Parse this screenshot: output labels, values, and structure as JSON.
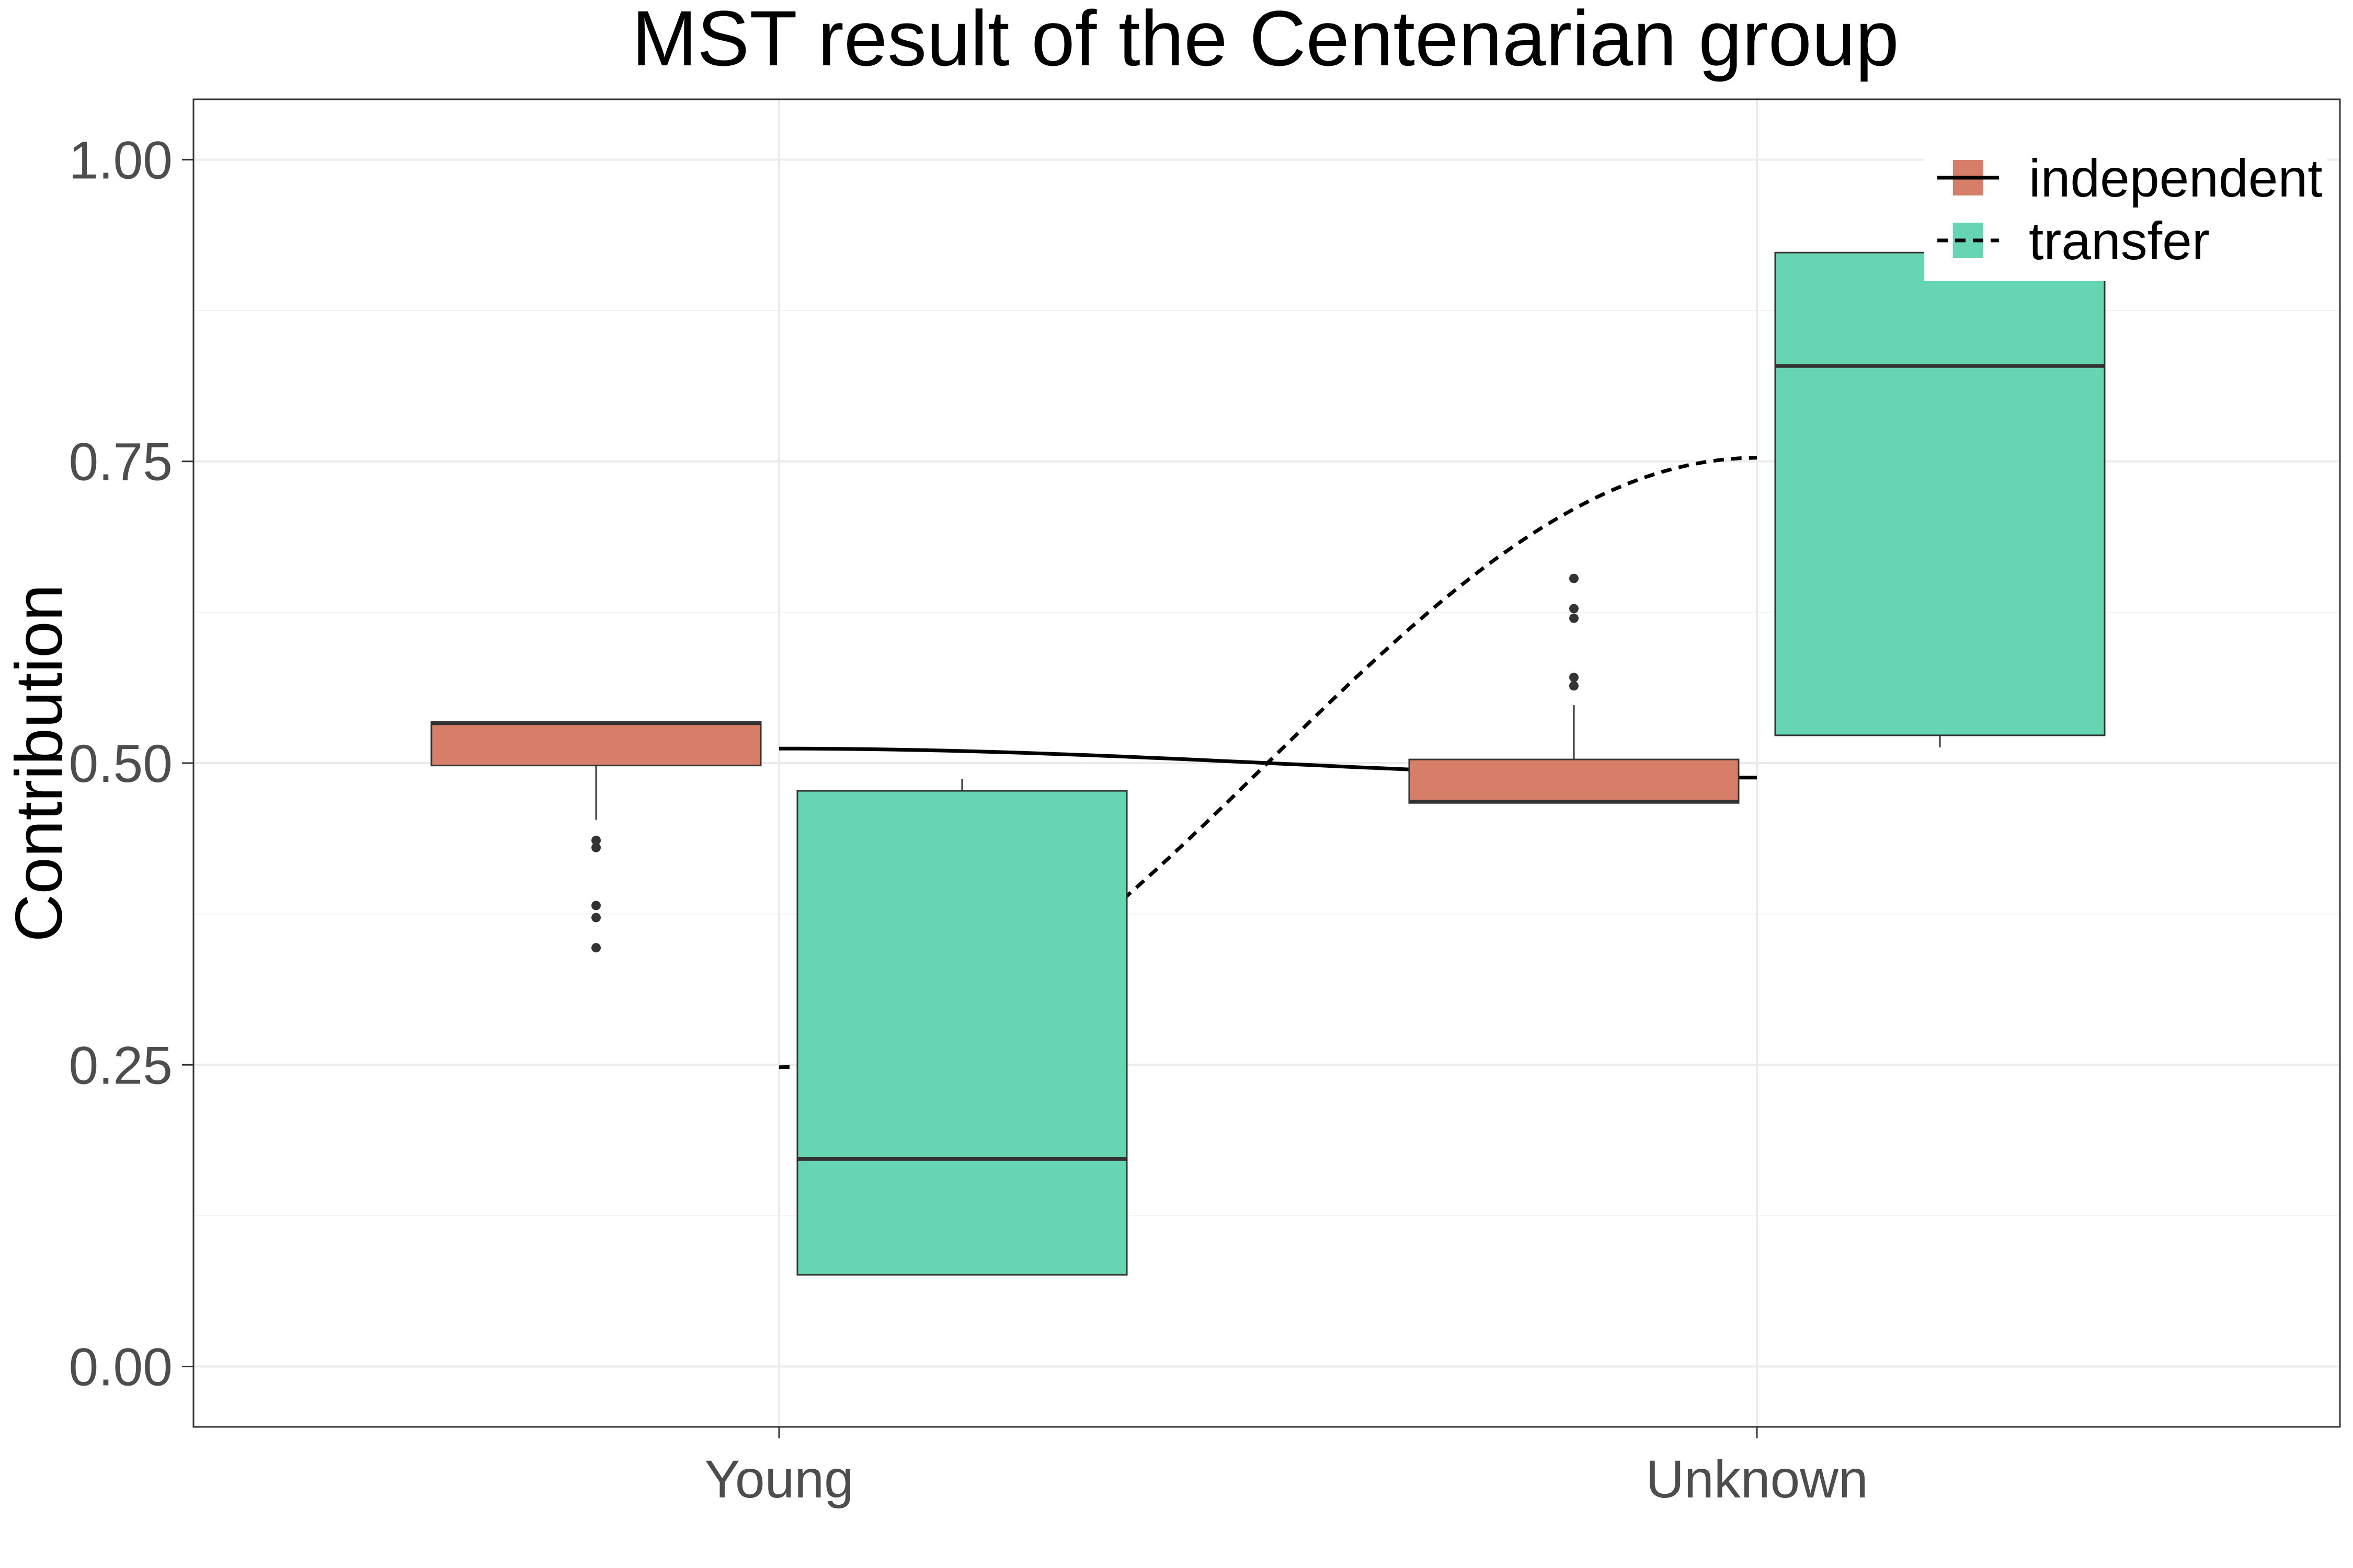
{
  "chart_data": {
    "type": "box",
    "title": "MST result of the Centenarian group",
    "xlabel": "",
    "ylabel": "Contribution",
    "categories": [
      "Young",
      "Unknown"
    ],
    "ylim": [
      -0.05,
      1.05
    ],
    "yticks": [
      "0.00",
      "0.25",
      "0.50",
      "0.75",
      "1.00"
    ],
    "grid": true,
    "legend_position": "top-right",
    "series": [
      {
        "name": "independent",
        "color": "#D77E68",
        "line_style": "solid",
        "boxes": [
          {
            "category": "Young",
            "whisker_low": 0.453,
            "q1": 0.498,
            "median": 0.533,
            "q3": 0.534,
            "whisker_high": 0.534,
            "outliers": [
              0.436,
              0.43,
              0.382,
              0.372,
              0.347
            ]
          },
          {
            "category": "Unknown",
            "whisker_low": 0.467,
            "q1": 0.467,
            "median": 0.468,
            "q3": 0.503,
            "whisker_high": 0.548,
            "outliers": [
              0.653,
              0.628,
              0.62,
              0.571,
              0.564
            ]
          }
        ],
        "trend": [
          0.512,
          0.488
        ]
      },
      {
        "name": "transfer",
        "color": "#66D5B2",
        "line_style": "dashed",
        "boxes": [
          {
            "category": "Young",
            "whisker_low": 0.076,
            "q1": 0.076,
            "median": 0.172,
            "q3": 0.477,
            "whisker_high": 0.487,
            "outliers": []
          },
          {
            "category": "Unknown",
            "whisker_low": 0.513,
            "q1": 0.523,
            "median": 0.829,
            "q3": 0.923,
            "whisker_high": 0.923,
            "outliers": []
          }
        ],
        "trend": [
          0.248,
          0.753
        ]
      }
    ]
  }
}
